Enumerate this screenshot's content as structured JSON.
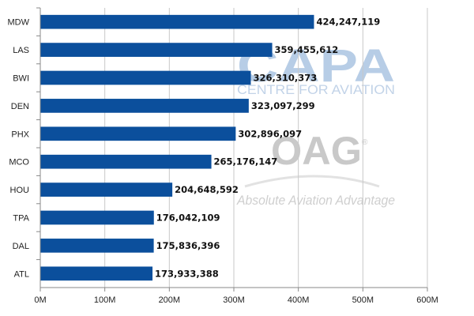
{
  "chart_data": {
    "type": "bar",
    "orientation": "horizontal",
    "categories": [
      "MDW",
      "LAS",
      "BWI",
      "DEN",
      "PHX",
      "MCO",
      "HOU",
      "TPA",
      "DAL",
      "ATL"
    ],
    "values": [
      424247119,
      359455612,
      326310373,
      323097299,
      302896097,
      265176147,
      204648592,
      176042109,
      175836396,
      173933388
    ],
    "value_labels": [
      "424,247,119",
      "359,455,612",
      "326,310,373",
      "323,097,299",
      "302,896,097",
      "265,176,147",
      "204,648,592",
      "176,042,109",
      "175,836,396",
      "173,933,388"
    ],
    "xlim": [
      0,
      600000000
    ],
    "x_ticks": [
      0,
      100000000,
      200000000,
      300000000,
      400000000,
      500000000,
      600000000
    ],
    "x_tick_labels": [
      "0M",
      "100M",
      "200M",
      "300M",
      "400M",
      "500M",
      "600M"
    ],
    "grid": true,
    "bar_color": "#0b4f9c",
    "title": "",
    "xlabel": "",
    "ylabel": ""
  },
  "watermarks": {
    "capa_logo_text": "CAPA",
    "capa_tagline": "CENTRE FOR AVIATION",
    "oag_logo_text": "OAG",
    "oag_tagline": "Absolute Aviation Advantage",
    "oag_registered": "®"
  }
}
